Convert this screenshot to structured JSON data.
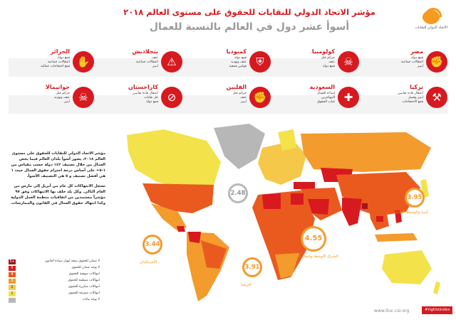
{
  "header": {
    "title": "مؤشر الاتحاد الدولي للنقابات للحقوق على مستوى العالم ٢٠١٨",
    "subtitle": "أسوأ عشر دول في العالم بالنسبة للعمال",
    "logo_text": "الاتحاد الدولي للنقابات"
  },
  "countries": [
    {
      "name": "مصر",
      "icon": "broken-chain-icon",
      "glyph": "✊",
      "lines": [
        "قمع دولة",
        "اعتقالات جماعية",
        "لـيبز"
      ]
    },
    {
      "name": "كولومبيا",
      "icon": "skull-icon",
      "glyph": "☠",
      "lines": [
        "جرائم قتل",
        "عنف",
        "قمع دولة"
      ]
    },
    {
      "name": "كمبوديا",
      "icon": "shield-icon",
      "glyph": "⛨",
      "lines": [
        "قمع دولة",
        "عنف وتهديد",
        "قوانين قمعية"
      ]
    },
    {
      "name": "بنجلاديش",
      "icon": "baton-icon",
      "glyph": "⚠",
      "lines": [
        "عنف",
        "اعتقالات جماعية",
        "لـيبز"
      ]
    },
    {
      "name": "الجزائر",
      "icon": "fist-icon",
      "glyph": "✋",
      "lines": [
        "قمع دولة",
        "اعتقالات جماعية",
        "قمع احتجاجات عمالية"
      ]
    },
    {
      "name": "تركيا",
      "icon": "gavel-icon",
      "glyph": "⚒",
      "lines": [
        "اعتقال قادة نقابيين",
        "لـيبز وفصل",
        "قمع الاحتجاجات"
      ]
    },
    {
      "name": "السعودية",
      "icon": "bandage-icon",
      "glyph": "✚",
      "lines": [
        "إساءة للعمال",
        "المهاجرين",
        "غياب الحقوق"
      ]
    },
    {
      "name": "الفلبين",
      "icon": "fist-raised-icon",
      "glyph": "✊",
      "lines": [
        "جرائم قتل",
        "عنف",
        "لـيبز"
      ]
    },
    {
      "name": "كازاخستان",
      "icon": "no-entry-icon",
      "glyph": "⊘",
      "lines": [
        "اعتقال قادة نقابيين",
        "حل نقابات",
        "قمع دولة"
      ]
    },
    {
      "name": "جواتيمالا",
      "icon": "skull-icon",
      "glyph": "☠",
      "lines": [
        "جرائم قتل",
        "عنف وتهديد",
        "لـيبز"
      ]
    }
  ],
  "description": [
    "مؤشر الاتحاد الدولي للنقابات للحقوق على مستوى العالم ٢٠١٨، يصور أسوأ بلدان العالم فيما يخص العمال من خلال تصنيف ١٤٢ دولة حسب مقياس من ١-٥+ على أساس درجة احترام حقوق العمال حيث ١ هي أفضل تصنيف و ٥ هي التصنيف الأسوأ.",
    "تسجل الانتهاكات كل عام من أبريل إلى مارس من العام التالي. وكل بلد خلف بها الانتهاكات وفق ٩٧ مؤشراً مستمدين من اتفاقيات منظمة العمل الدولية وكذا انتهاك حقوق العمال في القانون والممارسات."
  ],
  "regions": [
    {
      "name": "الأمريكيتان",
      "score": "3.44"
    },
    {
      "name": "أوروبا",
      "score": "2.48"
    },
    {
      "name": "أفريقيا",
      "score": "3.91"
    },
    {
      "name": "الشرق الأوسط وشمال أفريقيا",
      "score": "4.55"
    },
    {
      "name": "آسيا والمحيط الهادئ",
      "score": "3.95"
    }
  ],
  "legend": [
    {
      "rating": "5+",
      "text": "لا ضمان للحقوق نتيجة انهيار سيادة القانون",
      "color": "#a31419"
    },
    {
      "rating": "5",
      "text": "لا يوجد ضمان للحقوق",
      "color": "#d71920"
    },
    {
      "rating": "4",
      "text": "انتهاكات منهجية للحقوق",
      "color": "#ea5a1e"
    },
    {
      "rating": "3",
      "text": "انتهاكات منتظمة للحقوق",
      "color": "#f39b2c"
    },
    {
      "rating": "2",
      "text": "انتهاكات متكررة للحقوق",
      "color": "#f6c84a"
    },
    {
      "rating": "1",
      "text": "انتهاكات متفرقة للحقوق",
      "color": "#f3e24a"
    },
    {
      "rating": "",
      "text": "لا توجد بيانات",
      "color": "#b7b7b7"
    }
  ],
  "footer": {
    "url": "www.ituc-csi.org",
    "tag": "#rightsindex"
  },
  "colors": {
    "accent": "#d71920",
    "orange": "#f39b2c",
    "gray": "#9a9a9a"
  }
}
